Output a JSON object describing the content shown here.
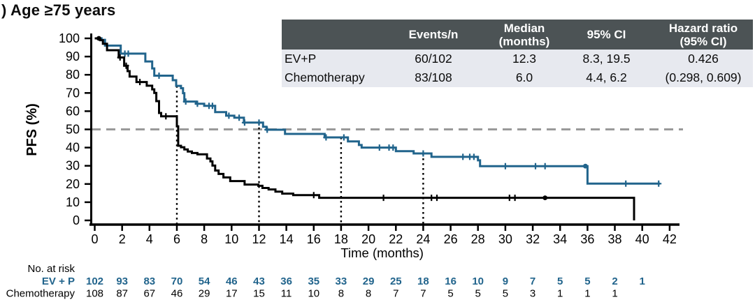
{
  "title": ") Age ≥75 years",
  "colors": {
    "ev_p": "#21648C",
    "chemotherapy": "#000000",
    "reference_line": "#999999",
    "landmark_line": "#000000",
    "table_header_bg": "#4C5355",
    "table_header_text": "#FFFFFF",
    "table_row_bg": "#E7E9EF"
  },
  "stats_table": {
    "headers": [
      "",
      "Events/n",
      "Median\n(months)",
      "95% CI",
      "Hazard ratio\n(95% CI)"
    ],
    "rows": [
      [
        "EV+P",
        "60/102",
        "12.3",
        "8.3, 19.5",
        "0.426"
      ],
      [
        "Chemotherapy",
        "83/108",
        "6.0",
        "4.4, 6.2",
        "(0.298, 0.609)"
      ]
    ]
  },
  "chart_data": {
    "type": "line",
    "subtype": "kaplan-meier-step",
    "title": "",
    "xlabel": "Time (months)",
    "ylabel": "PFS (%)",
    "xlim": [
      0,
      42
    ],
    "ylim": [
      0,
      100
    ],
    "xticks": [
      0,
      2,
      4,
      6,
      8,
      10,
      12,
      14,
      16,
      18,
      20,
      22,
      24,
      26,
      28,
      30,
      32,
      34,
      36,
      38,
      40,
      42
    ],
    "yticks": [
      0,
      10,
      20,
      30,
      40,
      50,
      60,
      70,
      80,
      90,
      100
    ],
    "grid": false,
    "reference_line_y": 50,
    "landmark_lines": [
      {
        "t": 6,
        "top": 73.9
      },
      {
        "t": 12,
        "top": 53.7
      },
      {
        "t": 18,
        "top": 45.6
      },
      {
        "t": 24,
        "top": 36.8
      }
    ],
    "series": [
      {
        "name": "EV + P",
        "color_key": "ev_p",
        "steps": [
          [
            0,
            100
          ],
          [
            0.5,
            99.2
          ],
          [
            0.75,
            96
          ],
          [
            1.9,
            91.6
          ],
          [
            3.7,
            87.3
          ],
          [
            4.2,
            83.5
          ],
          [
            4.35,
            79.5
          ],
          [
            5.7,
            77
          ],
          [
            5.95,
            73.9
          ],
          [
            6.3,
            72.6
          ],
          [
            6.45,
            69.9
          ],
          [
            6.55,
            65.3
          ],
          [
            7.4,
            64.1
          ],
          [
            8.0,
            62.9
          ],
          [
            8.8,
            59.5
          ],
          [
            9.6,
            57.5
          ],
          [
            10.2,
            56.4
          ],
          [
            10.9,
            53.7
          ],
          [
            12.3,
            51.4
          ],
          [
            12.55,
            49.8
          ],
          [
            13.9,
            47.5
          ],
          [
            16.8,
            45.6
          ],
          [
            18.5,
            43.4
          ],
          [
            19.3,
            41.4
          ],
          [
            19.5,
            40.0
          ],
          [
            22.0,
            38.0
          ],
          [
            23.3,
            36.8
          ],
          [
            24.6,
            34.9
          ],
          [
            28.0,
            33.0
          ],
          [
            28.15,
            29.8
          ],
          [
            36.0,
            20.2
          ]
        ],
        "end_t": 41.3,
        "censors": [
          2.2,
          2.45,
          4.7,
          6.65,
          7.5,
          8.35,
          8.6,
          9.8,
          10.55,
          10.95,
          12.0,
          12.6,
          16.9,
          18.2,
          20.8,
          21.5,
          21.8,
          24.0,
          26.9,
          27.4,
          27.7,
          30.0,
          32.2,
          32.9,
          38.8,
          41.2
        ],
        "dots": [
          35.85
        ]
      },
      {
        "name": "Chemotherapy",
        "color_key": "chemotherapy",
        "steps": [
          [
            0,
            100
          ],
          [
            0.4,
            99
          ],
          [
            0.6,
            97
          ],
          [
            0.9,
            93.5
          ],
          [
            1.75,
            89.5
          ],
          [
            2.15,
            85
          ],
          [
            2.4,
            82
          ],
          [
            2.55,
            79
          ],
          [
            3.05,
            76
          ],
          [
            3.8,
            74
          ],
          [
            4.2,
            72
          ],
          [
            4.35,
            70
          ],
          [
            4.5,
            65.5
          ],
          [
            4.7,
            59
          ],
          [
            4.85,
            57.2
          ],
          [
            6.0,
            51.7
          ],
          [
            6.1,
            41.0
          ],
          [
            6.3,
            40.2
          ],
          [
            6.55,
            39.0
          ],
          [
            6.8,
            37.8
          ],
          [
            7.1,
            37.0
          ],
          [
            7.5,
            36.3
          ],
          [
            8.2,
            34.0
          ],
          [
            8.45,
            32.4
          ],
          [
            8.6,
            30.1
          ],
          [
            8.8,
            27.4
          ],
          [
            9.05,
            25.5
          ],
          [
            9.4,
            23.6
          ],
          [
            9.9,
            21.6
          ],
          [
            10.95,
            19.7
          ],
          [
            11.95,
            19.0
          ],
          [
            12.25,
            17.8
          ],
          [
            12.7,
            17.0
          ],
          [
            13.2,
            15.8
          ],
          [
            13.7,
            14.7
          ],
          [
            14.5,
            13.9
          ],
          [
            16.4,
            12.4
          ],
          [
            39.4,
            0
          ]
        ],
        "end_t": null,
        "censors": [
          1.85,
          2.3,
          3.3,
          5.2,
          16.0,
          21.1,
          24.6,
          25.0,
          30.3,
          30.7
        ],
        "dots": [
          0.3,
          32.9
        ]
      }
    ]
  },
  "risk_table": {
    "label": "No. at risk",
    "times": [
      0,
      2,
      4,
      6,
      8,
      10,
      12,
      14,
      16,
      18,
      20,
      22,
      24,
      26,
      28,
      30,
      32,
      34,
      36,
      38,
      40
    ],
    "rows": [
      {
        "name": "EV + P",
        "color_key": "ev_p",
        "bold": true,
        "values": [
          102,
          93,
          83,
          70,
          54,
          46,
          43,
          36,
          35,
          33,
          29,
          25,
          18,
          16,
          10,
          9,
          7,
          5,
          5,
          2,
          1
        ]
      },
      {
        "name": "Chemotherapy",
        "color_key": "chemotherapy",
        "bold": false,
        "values": [
          108,
          87,
          67,
          46,
          29,
          17,
          15,
          11,
          10,
          8,
          8,
          7,
          7,
          5,
          5,
          5,
          3,
          1,
          1,
          1
        ]
      }
    ]
  }
}
